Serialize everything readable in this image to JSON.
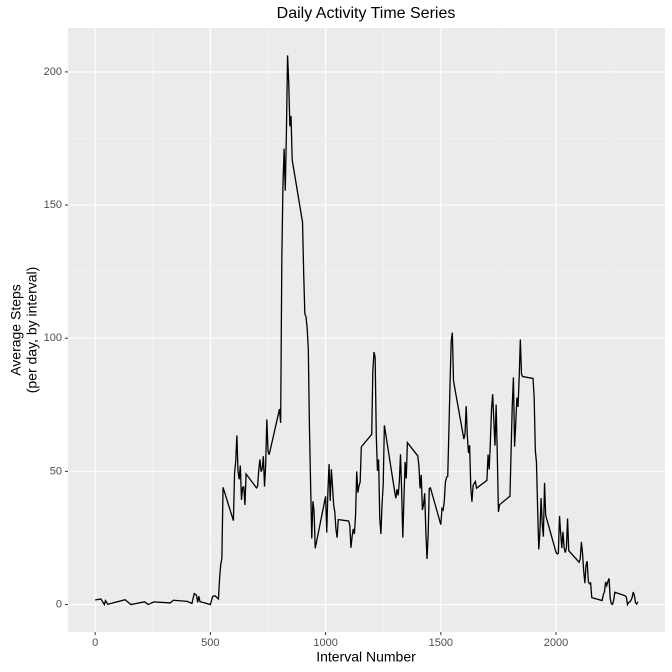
{
  "chart_data": {
    "type": "line",
    "title": "Daily Activity Time Series",
    "x_label": "Interval Number",
    "y_label": [
      "Average Steps",
      "(per day, by interval)"
    ],
    "color": "#000000",
    "grid": true,
    "xlim": [
      -117.75,
      2472.75
    ],
    "ylim": [
      -10.31,
      216.48
    ],
    "xticks": [
      0,
      500,
      1000,
      1500,
      2000
    ],
    "yticks": [
      0,
      50,
      100,
      150,
      200
    ],
    "x_minor_ticks": [
      250,
      750,
      1250,
      1750,
      2250
    ],
    "y_minor_ticks": [
      25,
      75,
      125,
      175
    ],
    "x": [
      0,
      25,
      40,
      45,
      55,
      130,
      155,
      215,
      230,
      255,
      325,
      340,
      400,
      420,
      430,
      440,
      445,
      450,
      455,
      500,
      510,
      520,
      535,
      540,
      545,
      550,
      555,
      600,
      605,
      610,
      615,
      620,
      625,
      630,
      635,
      640,
      645,
      650,
      655,
      700,
      705,
      710,
      715,
      720,
      725,
      730,
      735,
      740,
      745,
      750,
      755,
      800,
      805,
      810,
      815,
      820,
      825,
      830,
      835,
      840,
      845,
      850,
      855,
      900,
      905,
      910,
      915,
      920,
      925,
      930,
      935,
      940,
      945,
      950,
      955,
      1000,
      1005,
      1010,
      1015,
      1020,
      1025,
      1030,
      1035,
      1040,
      1045,
      1050,
      1055,
      1100,
      1105,
      1110,
      1115,
      1120,
      1125,
      1130,
      1135,
      1140,
      1145,
      1150,
      1155,
      1200,
      1205,
      1210,
      1215,
      1220,
      1225,
      1230,
      1235,
      1240,
      1245,
      1250,
      1255,
      1300,
      1305,
      1310,
      1315,
      1320,
      1325,
      1330,
      1335,
      1340,
      1345,
      1350,
      1355,
      1400,
      1405,
      1410,
      1415,
      1420,
      1425,
      1430,
      1435,
      1440,
      1445,
      1450,
      1455,
      1500,
      1505,
      1510,
      1515,
      1520,
      1525,
      1530,
      1535,
      1540,
      1545,
      1550,
      1555,
      1600,
      1605,
      1610,
      1615,
      1620,
      1625,
      1630,
      1635,
      1640,
      1645,
      1650,
      1655,
      1700,
      1705,
      1710,
      1715,
      1720,
      1725,
      1730,
      1735,
      1740,
      1745,
      1750,
      1755,
      1800,
      1805,
      1810,
      1815,
      1820,
      1825,
      1830,
      1835,
      1840,
      1845,
      1850,
      1855,
      1900,
      1905,
      1910,
      1915,
      1920,
      1925,
      1930,
      1935,
      1940,
      1945,
      1950,
      1955,
      2000,
      2005,
      2010,
      2015,
      2020,
      2025,
      2030,
      2035,
      2040,
      2045,
      2050,
      2055,
      2100,
      2105,
      2110,
      2115,
      2120,
      2125,
      2130,
      2135,
      2140,
      2145,
      2150,
      2155,
      2200,
      2205,
      2210,
      2215,
      2220,
      2225,
      2230,
      2235,
      2240,
      2245,
      2250,
      2255,
      2300,
      2305,
      2310,
      2315,
      2320,
      2325,
      2330,
      2335,
      2340,
      2345,
      2350,
      2355
    ],
    "values": [
      1.7,
      2.1,
      0,
      1.5,
      0.1,
      1.8,
      0,
      1.0,
      0,
      1.0,
      0.6,
      1.6,
      1.2,
      0.4,
      4.1,
      3.5,
      0.8,
      3.1,
      1.1,
      0,
      3.0,
      3.3,
      2.1,
      9.8,
      15,
      17.4,
      44,
      31.5,
      49.3,
      53.8,
      63.5,
      50,
      47,
      52.2,
      39.3,
      44,
      44.2,
      37.4,
      49,
      43.8,
      44.4,
      50.5,
      54.5,
      49.9,
      50.9,
      55.7,
      44.3,
      52.3,
      69.5,
      57.8,
      56.2,
      73.4,
      68.2,
      129.4,
      157.5,
      171.2,
      155.4,
      177.3,
      206.2,
      195.9,
      179.6,
      183.4,
      167.0,
      143.5,
      124.0,
      109.1,
      108.1,
      103.7,
      95.97,
      66.2,
      45.2,
      24.8,
      38.8,
      35,
      21.1,
      40.6,
      27,
      42.4,
      52.7,
      38.9,
      50.8,
      44.3,
      37.4,
      34.7,
      28.3,
      25.1,
      31.9,
      31.4,
      29.7,
      21.3,
      25.5,
      28.4,
      26.5,
      33.4,
      49.98,
      42,
      44.6,
      46,
      59.2,
      63.9,
      87.7,
      94.8,
      92.8,
      63.4,
      50.2,
      54.5,
      32.4,
      26.5,
      37.7,
      45.1,
      67.3,
      42.3,
      39.9,
      43.3,
      40.98,
      46.2,
      56.4,
      42.8,
      25.1,
      39.96,
      53.5,
      47.3,
      60.8,
      55.8,
      51.96,
      43.6,
      48.7,
      35.5,
      37.5,
      41.8,
      27.5,
      17.1,
      26.1,
      43.6,
      43.8,
      30.0,
      36.1,
      35.5,
      38.8,
      45.96,
      47.8,
      48.1,
      65.3,
      82.9,
      98.7,
      102.1,
      84.0,
      62.1,
      64.1,
      74.5,
      63.2,
      56.9,
      59.8,
      43.9,
      38.6,
      44.7,
      45.5,
      46.2,
      43.7,
      46.6,
      56.3,
      50.7,
      61.2,
      73.4,
      79.0,
      68.9,
      59.7,
      75.1,
      56.5,
      34.8,
      37.5,
      40.7,
      58.0,
      74.7,
      85.3,
      59.3,
      67.8,
      77.7,
      74.2,
      85.3,
      99.5,
      86.6,
      85.6,
      84.9,
      77.8,
      58.0,
      53.4,
      36.3,
      20.7,
      27.4,
      40.0,
      30.2,
      25.5,
      45.7,
      33.5,
      19.6,
      19.0,
      19.3,
      33.3,
      26.8,
      21.2,
      27.3,
      21.3,
      19.5,
      21.3,
      32.3,
      20.2,
      15.9,
      17.2,
      23.5,
      19.2,
      12.5,
      8.0,
      14.7,
      16.3,
      8.7,
      7.8,
      8.1,
      2.6,
      1.5,
      3.7,
      4.8,
      8.5,
      7.1,
      8.7,
      9.8,
      2.2,
      0.3,
      0.1,
      1.6,
      4.6,
      3.3,
      2.8,
      0,
      0.8,
      0.96,
      1.6,
      2.6,
      4.7,
      3.3,
      0.6,
      0.2,
      1.1
    ]
  }
}
